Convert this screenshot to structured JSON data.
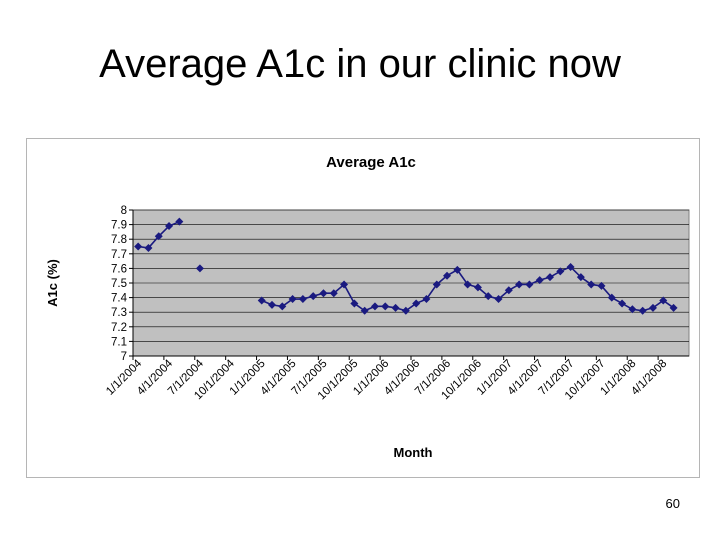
{
  "slide": {
    "title": "Average A1c in our clinic now",
    "page_number": "60"
  },
  "chart_data": {
    "type": "scatter",
    "title": "Average A1c",
    "xlabel": "Month",
    "ylabel": "A1c (%)",
    "ylim": [
      7,
      8
    ],
    "yticks": [
      "7",
      "7.1",
      "7.2",
      "7.3",
      "7.4",
      "7.5",
      "7.6",
      "7.7",
      "7.8",
      "7.9",
      "8"
    ],
    "x_tick_labels": [
      "1/1/2004",
      "4/1/2004",
      "7/1/2004",
      "10/1/2004",
      "1/1/2005",
      "4/1/2005",
      "7/1/2005",
      "10/1/2005",
      "1/1/2006",
      "4/1/2006",
      "7/1/2006",
      "10/1/2006",
      "1/1/2007",
      "4/1/2007",
      "7/1/2007",
      "10/1/2007",
      "1/1/2008",
      "4/1/2008"
    ],
    "grid": "horizontal",
    "legend": "none",
    "colors": {
      "marker": "#1a1a80",
      "plot_bg": "#c0c0c0",
      "gridline": "#000000"
    },
    "series": [
      {
        "segments": [
          [
            [
              "2004-01",
              7.75
            ],
            [
              "2004-02",
              7.74
            ],
            [
              "2004-03",
              7.82
            ],
            [
              "2004-04",
              7.89
            ],
            [
              "2004-05",
              7.92
            ]
          ],
          [
            [
              "2004-07",
              7.6
            ]
          ],
          [
            [
              "2005-01",
              7.38
            ],
            [
              "2005-02",
              7.35
            ],
            [
              "2005-03",
              7.34
            ],
            [
              "2005-04",
              7.39
            ],
            [
              "2005-05",
              7.39
            ],
            [
              "2005-06",
              7.41
            ],
            [
              "2005-07",
              7.43
            ],
            [
              "2005-08",
              7.43
            ],
            [
              "2005-09",
              7.49
            ],
            [
              "2005-10",
              7.36
            ],
            [
              "2005-11",
              7.31
            ],
            [
              "2005-12",
              7.34
            ],
            [
              "2006-01",
              7.34
            ],
            [
              "2006-02",
              7.33
            ],
            [
              "2006-03",
              7.31
            ],
            [
              "2006-04",
              7.36
            ],
            [
              "2006-05",
              7.39
            ],
            [
              "2006-06",
              7.49
            ],
            [
              "2006-07",
              7.55
            ],
            [
              "2006-08",
              7.59
            ],
            [
              "2006-09",
              7.49
            ],
            [
              "2006-10",
              7.47
            ],
            [
              "2006-11",
              7.41
            ],
            [
              "2006-12",
              7.39
            ],
            [
              "2007-01",
              7.45
            ],
            [
              "2007-02",
              7.49
            ],
            [
              "2007-03",
              7.49
            ],
            [
              "2007-04",
              7.52
            ],
            [
              "2007-05",
              7.54
            ],
            [
              "2007-06",
              7.58
            ],
            [
              "2007-07",
              7.61
            ],
            [
              "2007-08",
              7.54
            ],
            [
              "2007-09",
              7.49
            ],
            [
              "2007-10",
              7.48
            ],
            [
              "2007-11",
              7.4
            ],
            [
              "2007-12",
              7.36
            ],
            [
              "2008-01",
              7.32
            ],
            [
              "2008-02",
              7.31
            ],
            [
              "2008-03",
              7.33
            ],
            [
              "2008-04",
              7.38
            ],
            [
              "2008-05",
              7.33
            ]
          ]
        ]
      }
    ]
  }
}
